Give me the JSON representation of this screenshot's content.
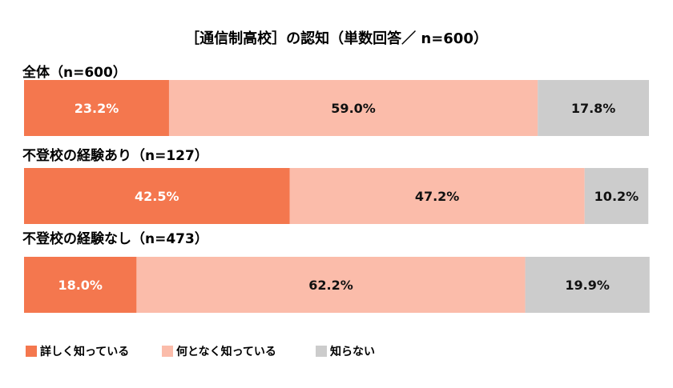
{
  "chart_data": {
    "type": "bar",
    "orientation": "horizontal",
    "stacked": true,
    "normalized": true,
    "title": "［通信制高校］の認知（単数回答／ n=600）",
    "value_suffix": "%",
    "xlim": [
      0,
      100
    ],
    "grid": false,
    "legend_position": "bottom-left",
    "categories": [
      "全体（n=600）",
      "不登校の経験あり（n=127）",
      "不登校の経験なし（n=473）"
    ],
    "series": [
      {
        "name": "詳しく知っている",
        "color": "#f4774e",
        "label_color": "#ffffff",
        "values": [
          23.2,
          42.5,
          18.0
        ]
      },
      {
        "name": "何となく知っている",
        "color": "#fbbcaa",
        "label_color": "#111111",
        "values": [
          59.0,
          47.2,
          62.2
        ]
      },
      {
        "name": "知らない",
        "color": "#cccccc",
        "label_color": "#111111",
        "values": [
          17.8,
          10.2,
          19.9
        ]
      }
    ]
  }
}
